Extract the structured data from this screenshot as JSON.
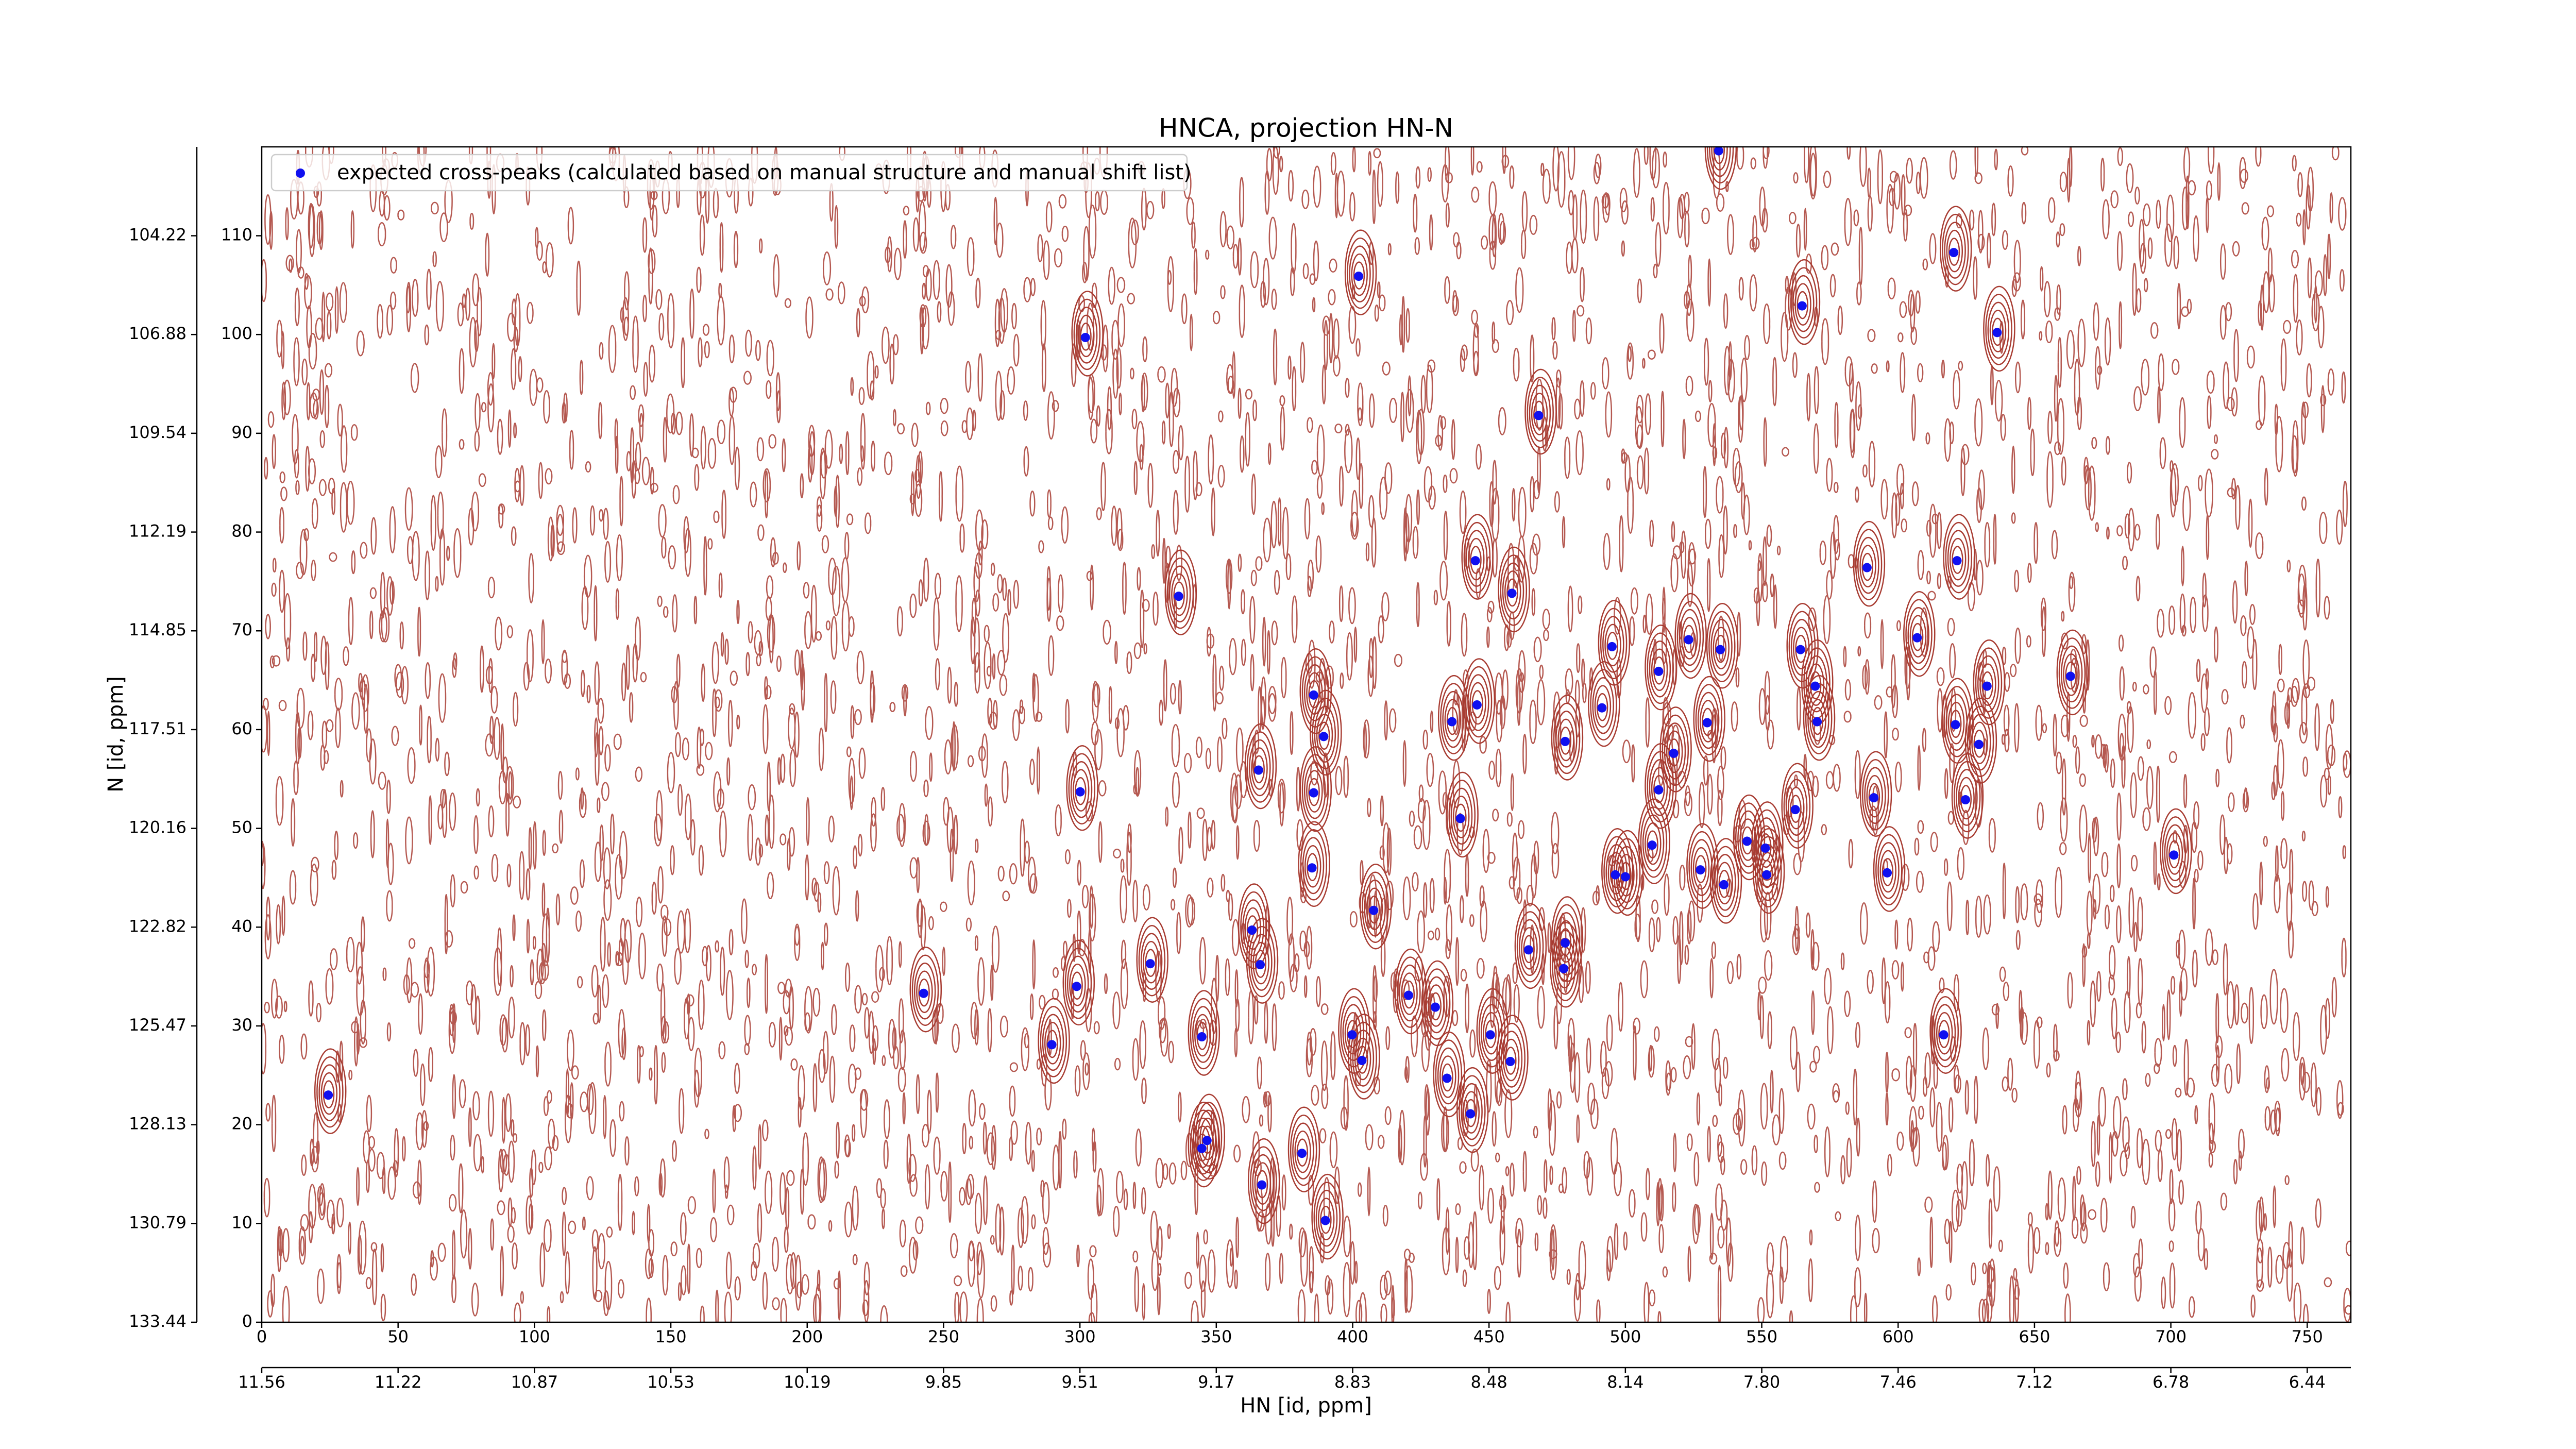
{
  "chart_data": {
    "type": "scatter",
    "title": "HNCA, projection HN-N",
    "xlabel": "HN [id, ppm]",
    "ylabel": "N [id, ppm]",
    "contour_color": "#a83c32",
    "xlim": [
      0,
      766
    ],
    "ylim": [
      0,
      119
    ],
    "xticks": [
      0,
      50,
      100,
      150,
      200,
      250,
      300,
      350,
      400,
      450,
      500,
      550,
      600,
      650,
      700,
      750
    ],
    "yticks": [
      0,
      10,
      20,
      30,
      40,
      50,
      60,
      70,
      80,
      90,
      100,
      110
    ],
    "x_ppm_ticks": [
      {
        "value": 0,
        "label": "11.56"
      },
      {
        "value": 50,
        "label": "11.22"
      },
      {
        "value": 100,
        "label": "10.87"
      },
      {
        "value": 150,
        "label": "10.53"
      },
      {
        "value": 200,
        "label": "10.19"
      },
      {
        "value": 250,
        "label": "9.85"
      },
      {
        "value": 300,
        "label": "9.51"
      },
      {
        "value": 350,
        "label": "9.17"
      },
      {
        "value": 400,
        "label": "8.83"
      },
      {
        "value": 450,
        "label": "8.48"
      },
      {
        "value": 500,
        "label": "8.14"
      },
      {
        "value": 550,
        "label": "7.80"
      },
      {
        "value": 600,
        "label": "7.46"
      },
      {
        "value": 650,
        "label": "7.12"
      },
      {
        "value": 700,
        "label": "6.78"
      },
      {
        "value": 750,
        "label": "6.44"
      }
    ],
    "y_ppm_ticks": [
      {
        "value": 0,
        "label": "133.44"
      },
      {
        "value": 10,
        "label": "130.79"
      },
      {
        "value": 20,
        "label": "128.13"
      },
      {
        "value": 30,
        "label": "125.47"
      },
      {
        "value": 40,
        "label": "122.82"
      },
      {
        "value": 50,
        "label": "120.16"
      },
      {
        "value": 60,
        "label": "117.51"
      },
      {
        "value": 70,
        "label": "114.85"
      },
      {
        "value": 80,
        "label": "112.19"
      },
      {
        "value": 90,
        "label": "109.54"
      },
      {
        "value": 100,
        "label": "106.88"
      },
      {
        "value": 110,
        "label": "104.22"
      }
    ],
    "series": [
      {
        "name": "expected cross-peaks (calculated based on manual structure and manual shift list)",
        "color": "#1010f0",
        "x": [
          24.4,
          242.7,
          289.7,
          298.8,
          300.1,
          302,
          325.8,
          336.2,
          344.7,
          346.6,
          344.7,
          363.1,
          365.5,
          366.1,
          366.7,
          381.4,
          385.1,
          385.7,
          385.7,
          389.4,
          390,
          399.8,
          402.2,
          403.4,
          407.7,
          420.5,
          430.3,
          434.6,
          436.4,
          439.5,
          443.2,
          445,
          445.6,
          450.5,
          457.8,
          458.4,
          464.5,
          468.2,
          477.9,
          477.9,
          477.4,
          491.4,
          495.1,
          496.3,
          500,
          509.8,
          512.2,
          512.2,
          517.7,
          523.2,
          527.5,
          530,
          534.2,
          534.8,
          536.1,
          544.6,
          551.3,
          551.8,
          562.3,
          564.2,
          564.8,
          569.6,
          570.3,
          588.6,
          591.1,
          596,
          607,
          616.7,
          620.4,
          621.6,
          621,
          624.7,
          629.6,
          632.6,
          636.3,
          663.2,
          701.1
        ],
        "values": [
          23,
          33.3,
          28.1,
          34,
          53.7,
          99.7,
          36.3,
          73.5,
          28.9,
          18.4,
          17.6,
          39.7,
          55.9,
          36.2,
          13.9,
          17.1,
          46,
          63.5,
          53.6,
          59.3,
          10.3,
          29.1,
          105.9,
          26.5,
          41.7,
          33.1,
          31.9,
          24.7,
          60.8,
          51,
          21.1,
          77.1,
          62.5,
          29.1,
          26.4,
          73.8,
          37.7,
          91.8,
          58.8,
          38.4,
          35.8,
          62.2,
          68.4,
          45.3,
          45.1,
          48.3,
          65.9,
          53.9,
          57.6,
          69.1,
          45.8,
          60.7,
          118.6,
          68.1,
          44.3,
          48.7,
          48,
          45.3,
          51.9,
          68.1,
          102.9,
          64.4,
          60.8,
          76.4,
          53.1,
          45.5,
          69.3,
          29.1,
          108.3,
          77.1,
          60.5,
          52.9,
          58.5,
          64.4,
          100.2,
          65.4,
          47.3
        ]
      }
    ]
  }
}
